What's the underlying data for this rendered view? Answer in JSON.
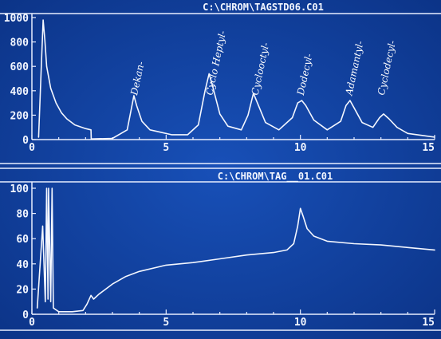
{
  "chart_data": [
    {
      "type": "line",
      "title": "C:\\CHROM\\TAGSTD06.C01",
      "xlabel": "",
      "ylabel": "",
      "xlim": [
        0,
        15
      ],
      "ylim": [
        0,
        1000
      ],
      "x_ticks": [
        "0",
        "5",
        "10",
        "15"
      ],
      "y_ticks": [
        "0",
        "200",
        "400",
        "600",
        "800",
        "1000"
      ],
      "grid": false,
      "peak_labels": [
        {
          "text": "Dekan-",
          "x": 3.8
        },
        {
          "text": "Cyclo Heptyl-",
          "x": 6.6
        },
        {
          "text": "Cyclooctyl-",
          "x": 8.3
        },
        {
          "text": "Dodecyl-",
          "x": 10.0
        },
        {
          "text": "Adamantyl-",
          "x": 11.8
        },
        {
          "text": "Cyclodecyl-",
          "x": 13.0
        }
      ],
      "series": [
        {
          "x": [
            0.25,
            0.35,
            0.42,
            0.48,
            0.55,
            0.7,
            0.9,
            1.1,
            1.3,
            1.6,
            2.0,
            2.2,
            2.21,
            3.0,
            3.55,
            3.7,
            3.8,
            3.9,
            4.1,
            4.4,
            4.6,
            4.8,
            5.2,
            5.8,
            6.2,
            6.45,
            6.6,
            6.75,
            7.0,
            7.3,
            7.8,
            8.05,
            8.25,
            8.4,
            8.7,
            9.2,
            9.7,
            9.9,
            10.05,
            10.2,
            10.5,
            11.0,
            11.5,
            11.7,
            11.85,
            12.0,
            12.3,
            12.7,
            12.95,
            13.1,
            13.3,
            13.6,
            14.0,
            15.0
          ],
          "y": [
            20,
            600,
            980,
            820,
            600,
            420,
            300,
            220,
            170,
            120,
            90,
            80,
            5,
            10,
            80,
            250,
            360,
            280,
            150,
            80,
            70,
            60,
            40,
            40,
            120,
            400,
            540,
            420,
            210,
            110,
            80,
            200,
            380,
            300,
            140,
            80,
            180,
            300,
            320,
            280,
            160,
            80,
            150,
            280,
            320,
            260,
            140,
            100,
            180,
            210,
            170,
            100,
            50,
            20
          ]
        }
      ]
    },
    {
      "type": "line",
      "title": "C:\\CHROM\\TAG__01.C01",
      "xlabel": "",
      "ylabel": "",
      "xlim": [
        0,
        15
      ],
      "ylim": [
        0,
        100
      ],
      "x_ticks": [
        "0",
        "5",
        "10",
        "15"
      ],
      "y_ticks": [
        "0",
        "20",
        "40",
        "60",
        "80",
        "100"
      ],
      "grid": false,
      "series": [
        {
          "x": [
            0.2,
            0.4,
            0.5,
            0.55,
            0.6,
            0.62,
            0.7,
            0.75,
            0.8,
            1.0,
            1.5,
            1.9,
            2.05,
            2.2,
            2.3,
            2.5,
            3.0,
            3.5,
            4.0,
            5.0,
            6.0,
            7.0,
            8.0,
            9.0,
            9.5,
            9.75,
            9.9,
            10.0,
            10.1,
            10.25,
            10.5,
            11.0,
            12.0,
            13.0,
            14.0,
            15.0
          ],
          "y": [
            5,
            70,
            10,
            100,
            12,
            100,
            10,
            100,
            5,
            2,
            2,
            3,
            8,
            15,
            12,
            16,
            24,
            30,
            34,
            39,
            41,
            44,
            47,
            49,
            51,
            56,
            70,
            84,
            78,
            68,
            62,
            58,
            56,
            55,
            53,
            51
          ]
        }
      ]
    }
  ]
}
